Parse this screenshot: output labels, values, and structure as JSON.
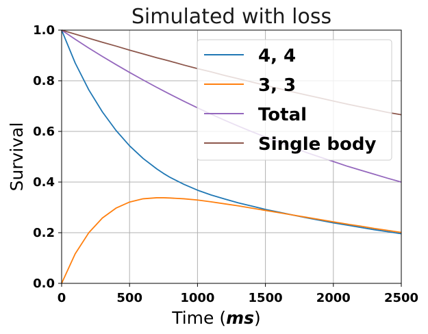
{
  "chart_data": {
    "type": "line",
    "title": "Simulated with loss",
    "xlabel_prefix": "Time (",
    "xlabel_unit": "ms",
    "xlabel_suffix": ")",
    "ylabel": "Survival",
    "xlim": [
      0,
      2500
    ],
    "ylim": [
      0,
      1.0
    ],
    "xticks": [
      0,
      500,
      1000,
      1500,
      2000,
      2500
    ],
    "yticks": [
      0.0,
      0.2,
      0.4,
      0.6,
      0.8,
      1.0
    ],
    "xtick_labels": [
      "0",
      "500",
      "1000",
      "1500",
      "2000",
      "2500"
    ],
    "ytick_labels": [
      "0.0",
      "0.2",
      "0.4",
      "0.6",
      "0.8",
      "1.0"
    ],
    "grid": true,
    "legend_position": "top-right",
    "x": [
      0,
      100,
      200,
      300,
      400,
      500,
      600,
      700,
      750,
      800,
      900,
      1000,
      1100,
      1200,
      1300,
      1400,
      1500,
      1600,
      1700,
      1800,
      1900,
      2000,
      2100,
      2200,
      2300,
      2400,
      2500
    ],
    "series": [
      {
        "name": "4, 4",
        "color": "#1f77b4",
        "values": [
          1.0,
          0.87,
          0.764,
          0.677,
          0.604,
          0.543,
          0.493,
          0.452,
          0.434,
          0.418,
          0.391,
          0.368,
          0.349,
          0.333,
          0.318,
          0.305,
          0.292,
          0.281,
          0.27,
          0.259,
          0.249,
          0.239,
          0.23,
          0.221,
          0.212,
          0.204,
          0.196
        ]
      },
      {
        "name": "3, 3",
        "color": "#ff7f0e",
        "values": [
          0.0,
          0.117,
          0.2,
          0.258,
          0.297,
          0.321,
          0.334,
          0.338,
          0.338,
          0.337,
          0.334,
          0.329,
          0.322,
          0.314,
          0.306,
          0.297,
          0.288,
          0.279,
          0.27,
          0.261,
          0.252,
          0.243,
          0.234,
          0.226,
          0.217,
          0.209,
          0.201
        ]
      },
      {
        "name": "Total",
        "color": "#9467bd",
        "values": [
          1.0,
          0.964,
          0.929,
          0.896,
          0.864,
          0.833,
          0.803,
          0.774,
          0.76,
          0.746,
          0.719,
          0.693,
          0.668,
          0.644,
          0.621,
          0.599,
          0.578,
          0.557,
          0.537,
          0.517,
          0.499,
          0.481,
          0.463,
          0.447,
          0.431,
          0.415,
          0.4
        ]
      },
      {
        "name": "Single body",
        "color": "#8c564b",
        "values": [
          1.0,
          0.984,
          0.968,
          0.952,
          0.937,
          0.921,
          0.906,
          0.891,
          0.884,
          0.877,
          0.862,
          0.848,
          0.835,
          0.821,
          0.808,
          0.795,
          0.782,
          0.769,
          0.756,
          0.744,
          0.732,
          0.72,
          0.708,
          0.697,
          0.686,
          0.675,
          0.666
        ]
      }
    ]
  }
}
